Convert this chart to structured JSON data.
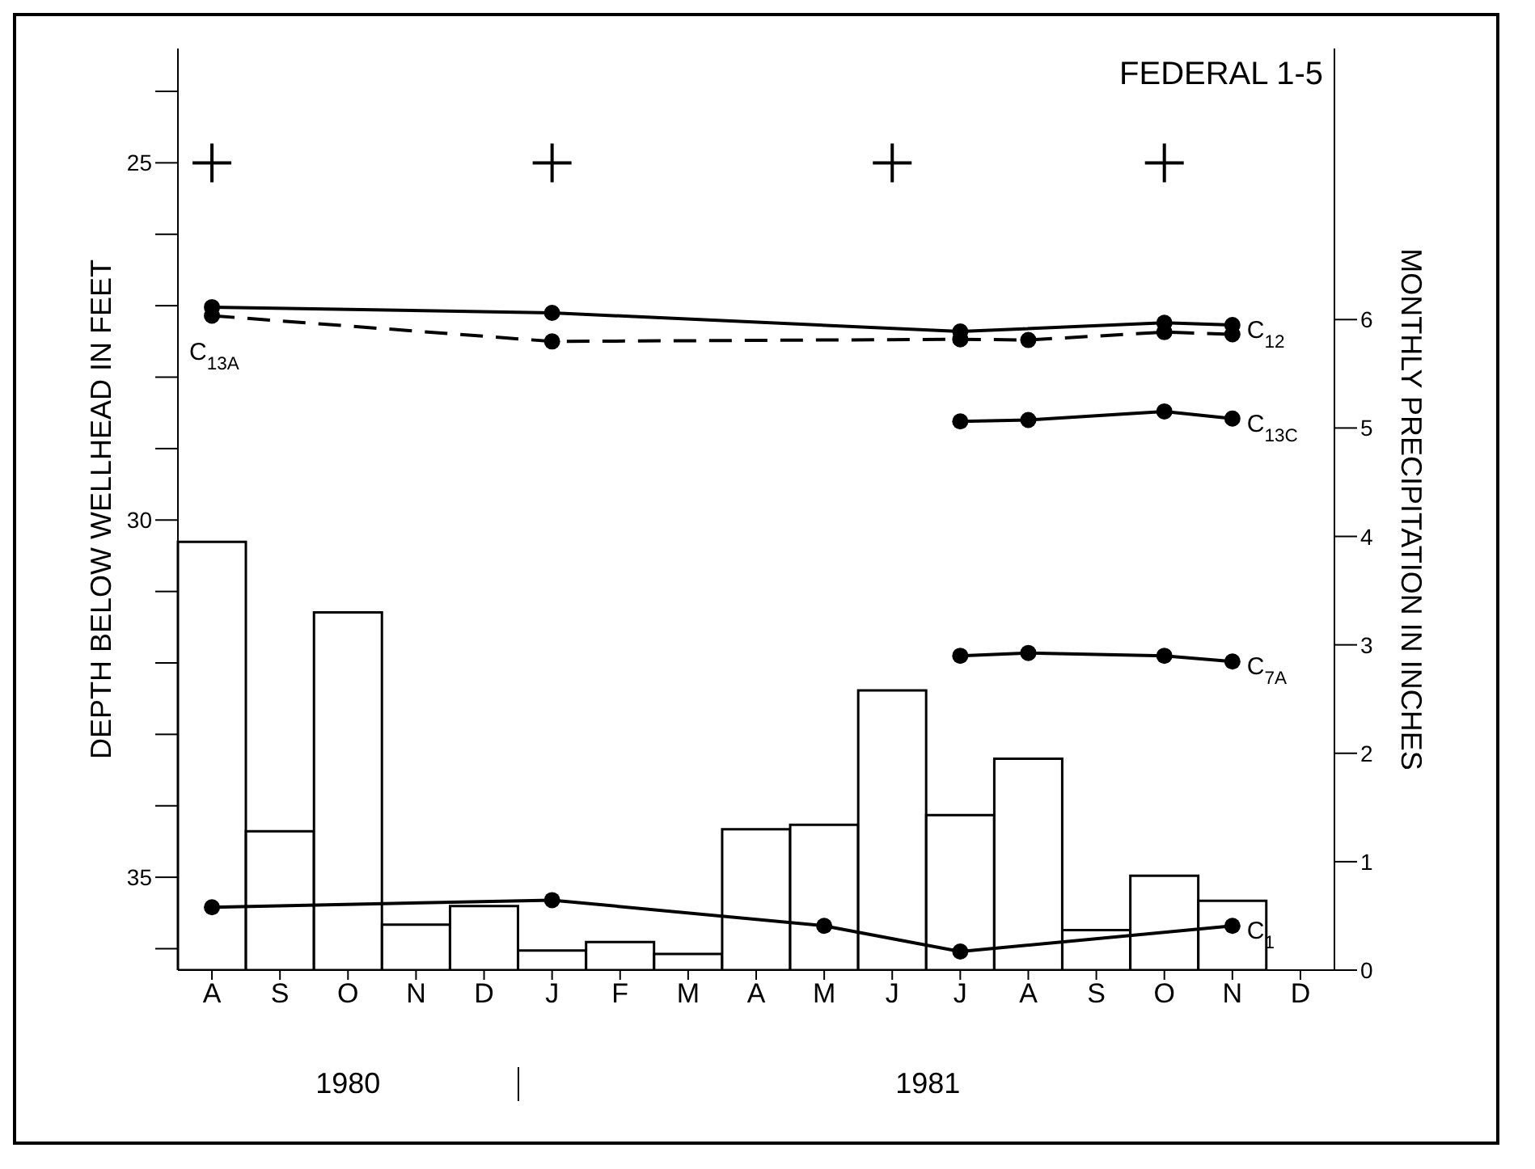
{
  "chart_data": {
    "type": "bar",
    "title": "FEDERAL 1-5",
    "ylabel": "DEPTH BELOW WELLHEAD IN FEET",
    "y2label": "MONTHLY PRECIPITATION IN INCHES",
    "categories": [
      "A",
      "S",
      "O",
      "N",
      "D",
      "J",
      "F",
      "M",
      "A",
      "M",
      "J",
      "J",
      "A",
      "S",
      "O",
      "N",
      "D"
    ],
    "series": [
      {
        "axis": "y2",
        "color": "#ffffff",
        "values": [
          3.95,
          1.28,
          3.3,
          0.42,
          0.59,
          0.18,
          0.26,
          0.15,
          1.3,
          1.34,
          2.58,
          1.43,
          1.95,
          0.37,
          0.87,
          0.64,
          null
        ]
      },
      {
        "type": "scatter",
        "marker": "cross",
        "color": "#000000",
        "values": [
          25,
          null,
          null,
          null,
          null,
          25,
          null,
          null,
          null,
          null,
          25,
          null,
          null,
          null,
          25,
          null,
          null
        ]
      },
      {
        "type": "line",
        "name": "C$_{13A}$",
        "line_style": "dashed",
        "marker": "circle",
        "color": "#000000",
        "values": [
          27.14,
          null,
          null,
          null,
          null,
          27.5,
          null,
          null,
          null,
          null,
          null,
          27.47,
          27.48,
          null,
          27.37,
          27.4,
          null
        ]
      },
      {
        "type": "line",
        "name": "C$_{12}$",
        "line_style": "solid",
        "marker": "circle",
        "color": "#000000",
        "values": [
          27.02,
          null,
          null,
          null,
          null,
          27.1,
          null,
          null,
          null,
          null,
          null,
          27.36,
          null,
          null,
          27.24,
          27.27,
          null
        ]
      },
      {
        "type": "line",
        "name": "C$_{13C}$",
        "line_style": "solid",
        "marker": "circle",
        "color": "#000000",
        "values": [
          null,
          null,
          null,
          null,
          null,
          null,
          null,
          null,
          null,
          null,
          null,
          28.62,
          28.6,
          null,
          28.48,
          28.58,
          null
        ]
      },
      {
        "type": "line",
        "name": "C$_{7A}$",
        "line_style": "solid",
        "marker": "circle",
        "color": "#000000",
        "values": [
          null,
          null,
          null,
          null,
          null,
          null,
          null,
          null,
          null,
          null,
          null,
          31.9,
          31.86,
          null,
          31.9,
          31.98,
          null
        ]
      },
      {
        "type": "line",
        "name": "C$_{1}$",
        "line_style": "solid",
        "marker": "circle",
        "color": "#000000",
        "values": [
          35.42,
          null,
          null,
          null,
          null,
          35.32,
          null,
          null,
          null,
          35.68,
          null,
          36.04,
          null,
          null,
          null,
          35.68,
          null
        ]
      }
    ],
    "ylim": [
      36.3,
      23.4
    ],
    "yticks": [
      {
        "value": 24,
        "label": null
      },
      25,
      {
        "value": 26,
        "label": null
      },
      {
        "value": 27,
        "label": null
      },
      {
        "value": 28,
        "label": null
      },
      {
        "value": 29,
        "label": null
      },
      30,
      {
        "value": 31,
        "label": null
      },
      {
        "value": 32,
        "label": null
      },
      {
        "value": 33,
        "label": null
      },
      {
        "value": 34,
        "label": null
      },
      35,
      {
        "value": 36,
        "label": null
      }
    ],
    "y2lim": [
      0,
      8.5
    ],
    "y2ticks": [
      0,
      1,
      2,
      3,
      4,
      5,
      6
    ],
    "annotations": [
      "1980",
      "1981"
    ],
    "grid": false,
    "legend": false
  }
}
